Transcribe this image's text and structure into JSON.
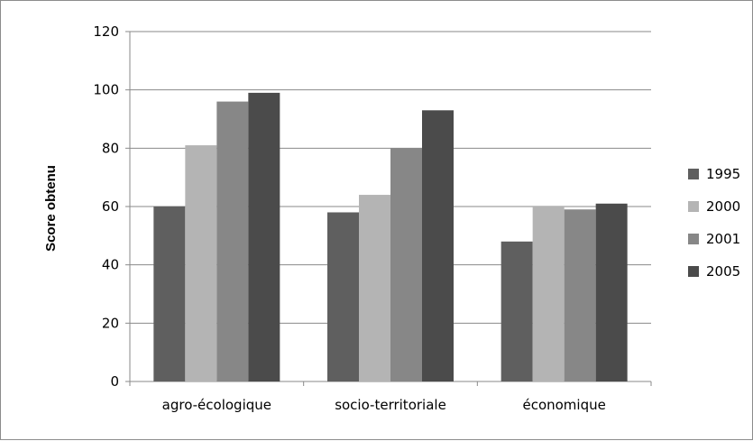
{
  "chart_data": {
    "type": "bar",
    "title": "",
    "xlabel": "",
    "ylabel": "Score obtenu",
    "ylim": [
      0,
      120
    ],
    "yticks": [
      0,
      20,
      40,
      60,
      80,
      100,
      120
    ],
    "grid": true,
    "legend_position": "right",
    "categories": [
      "agro-écologique",
      "socio-territoriale",
      "économique"
    ],
    "series": [
      {
        "name": "1995",
        "color": "#5f5f5f",
        "values": [
          60,
          58,
          48
        ]
      },
      {
        "name": "2000",
        "color": "#b4b4b4",
        "values": [
          81,
          64,
          60
        ]
      },
      {
        "name": "2001",
        "color": "#878787",
        "values": [
          96,
          80,
          59
        ]
      },
      {
        "name": "2005",
        "color": "#4b4b4b",
        "values": [
          99,
          93,
          61
        ]
      }
    ]
  }
}
